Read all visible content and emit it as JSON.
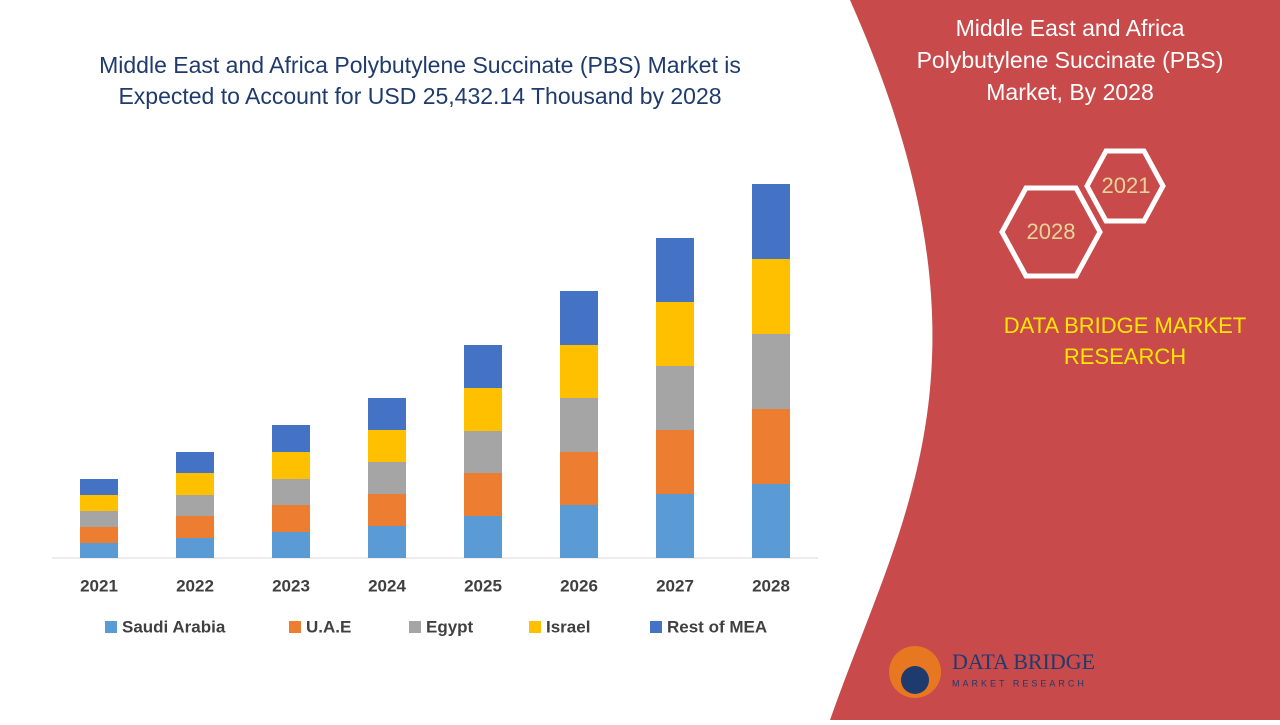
{
  "chart_data": {
    "type": "bar",
    "stacked": true,
    "title": "Middle East and Africa Polybutylene Succinate (PBS) Market is Expected to Account for USD 25,432.14 Thousand by 2028",
    "categories": [
      "2021",
      "2022",
      "2023",
      "2024",
      "2025",
      "2026",
      "2027",
      "2028"
    ],
    "series": [
      {
        "name": "Saudi Arabia",
        "color": "#5b9bd5",
        "values": [
          15,
          20,
          26,
          32,
          42,
          53,
          64,
          74
        ]
      },
      {
        "name": "U.A.E",
        "color": "#ed7d31",
        "values": [
          16,
          22,
          27,
          32,
          43,
          53,
          64,
          75
        ]
      },
      {
        "name": "Egypt",
        "color": "#a5a5a5",
        "values": [
          16,
          21,
          26,
          32,
          42,
          54,
          64,
          75
        ]
      },
      {
        "name": "Israel",
        "color": "#ffc000",
        "values": [
          16,
          22,
          27,
          32,
          43,
          53,
          64,
          75
        ]
      },
      {
        "name": "Rest of MEA",
        "color": "#4472c4",
        "values": [
          16,
          21,
          27,
          32,
          43,
          54,
          64,
          75
        ]
      }
    ]
  },
  "panel": {
    "title": "Middle East and Africa Polybutylene Succinate (PBS) Market, By 2028",
    "hex_labels": [
      "2021",
      "2028"
    ],
    "brand": "DATA BRIDGE MARKET RESEARCH",
    "logo_name": "DATA BRIDGE",
    "logo_sub": "MARKET RESEARCH"
  }
}
